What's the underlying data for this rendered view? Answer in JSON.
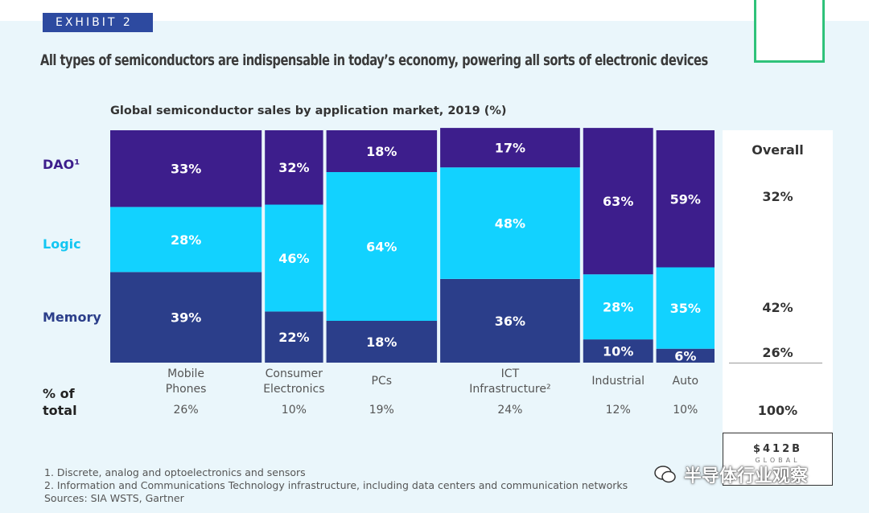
{
  "exhibit_label": "EXHIBIT 2",
  "headline": "All types of semiconductors are indispensable in today’s economy, powering all sorts of electronic devices",
  "subtitle": "Global semiconductor sales by application market, 2019 (%)",
  "row_labels": {
    "dao": "DAO¹",
    "logic": "Logic",
    "memory": "Memory"
  },
  "total_row_label": [
    "% of",
    "total"
  ],
  "colors": {
    "dao": "#3d1e8c",
    "logic": "#12d2ff",
    "memory": "#2b3e8a",
    "dao_text": "#3d1e8c",
    "logic_text": "#13c6f2",
    "memory_text": "#2b3e8a"
  },
  "chart_data": {
    "type": "bar",
    "categories": [
      "Mobile Phones",
      "Consumer Electronics",
      "PCs",
      "ICT Infrastructure²",
      "Industrial",
      "Auto"
    ],
    "category_labels": [
      [
        "Mobile",
        "Phones"
      ],
      [
        "Consumer",
        "Electronics"
      ],
      [
        "PCs"
      ],
      [
        "ICT",
        "Infrastructure²"
      ],
      [
        "Industrial"
      ],
      [
        "Auto"
      ]
    ],
    "widths": [
      26,
      10,
      19,
      24,
      12,
      10
    ],
    "width_labels": [
      "26%",
      "10%",
      "19%",
      "24%",
      "12%",
      "10%"
    ],
    "series": [
      {
        "name": "Memory",
        "values": [
          39,
          22,
          18,
          36,
          10,
          6
        ]
      },
      {
        "name": "Logic",
        "values": [
          28,
          46,
          64,
          48,
          28,
          35
        ]
      },
      {
        "name": "DAO¹",
        "values": [
          33,
          32,
          18,
          17,
          63,
          59
        ]
      }
    ],
    "ylim": [
      0,
      100
    ]
  },
  "overall": {
    "title": "Overall",
    "dao": "32%",
    "logic": "42%",
    "memory": "26%",
    "total": "100%"
  },
  "total_box": {
    "value": "$412B",
    "label": "GLOBAL"
  },
  "footnotes": [
    "1. Discrete, analog and optoelectronics and sensors",
    "2. Information and Communications Technology infrastructure, including data centers and communication networks",
    "Sources: SIA WSTS, Gartner"
  ],
  "watermark": "半导体行业观察"
}
